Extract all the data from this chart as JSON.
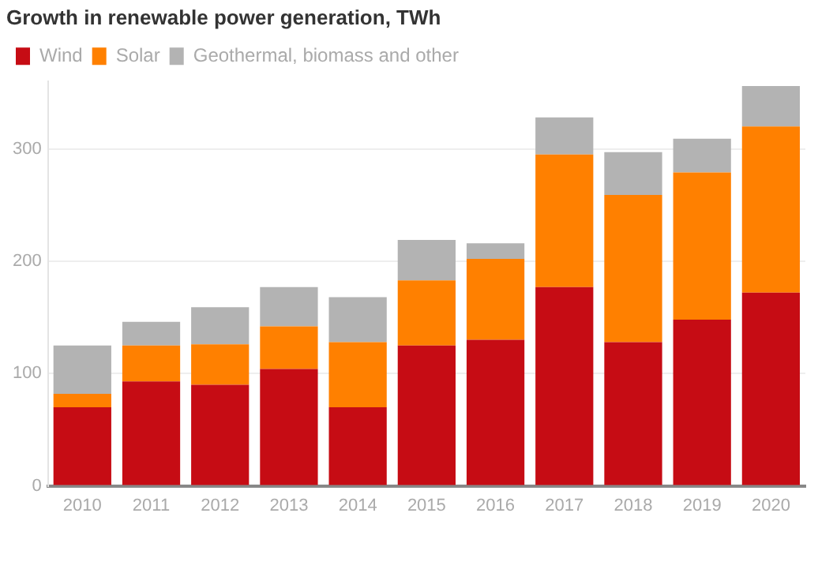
{
  "chart_data": {
    "type": "bar",
    "title": "Growth in renewable power generation, TWh",
    "stacked": true,
    "categories": [
      "2010",
      "2011",
      "2012",
      "2013",
      "2014",
      "2015",
      "2016",
      "2017",
      "2018",
      "2019",
      "2020"
    ],
    "series": [
      {
        "name": "Wind",
        "color": "#c60c14",
        "values": [
          70,
          93,
          90,
          104,
          70,
          125,
          130,
          177,
          128,
          148,
          172
        ]
      },
      {
        "name": "Solar",
        "color": "#ff8000",
        "values": [
          12,
          32,
          36,
          38,
          58,
          58,
          72,
          118,
          131,
          131,
          148
        ]
      },
      {
        "name": "Geothermal, biomass and other",
        "color": "#b3b3b3",
        "values": [
          43,
          21,
          33,
          35,
          40,
          36,
          14,
          33,
          38,
          30,
          36
        ]
      }
    ],
    "ylim": [
      0,
      360
    ],
    "yticks": [
      0,
      100,
      200,
      300
    ],
    "grid": "y",
    "legend": "top left"
  }
}
